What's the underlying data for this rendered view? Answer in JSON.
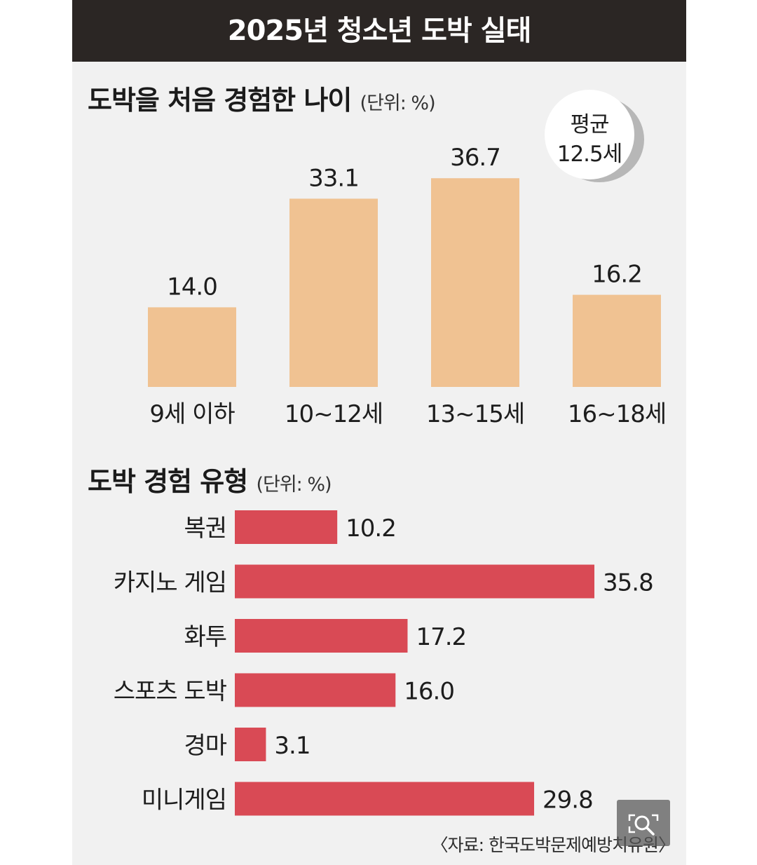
{
  "title": "2025년 청소년 도박 실태",
  "source": "〈자료: 한국도박문제예방치유원〉",
  "colors": {
    "title_bg": "#2b2624",
    "panel_bg": "#f1f1f1",
    "age_bar": "#f0c292",
    "type_bar": "#d94a55"
  },
  "icons": {
    "zoom": "search-icon"
  },
  "chart_data": [
    {
      "type": "bar",
      "title": "도박을 처음 경험한 나이",
      "unit": "(단위: %)",
      "annotation": {
        "line1": "평균",
        "line2": "12.5세"
      },
      "categories": [
        "9세 이하",
        "10~12세",
        "13~15세",
        "16~18세"
      ],
      "values": [
        14.0,
        33.1,
        36.7,
        16.2
      ],
      "value_labels": [
        "14.0",
        "33.1",
        "36.7",
        "16.2"
      ],
      "ylim": [
        0,
        40
      ],
      "orientation": "vertical",
      "grid": false
    },
    {
      "type": "bar",
      "title": "도박 경험 유형",
      "unit": "(단위: %)",
      "categories": [
        "복권",
        "카지노 게임",
        "화투",
        "스포츠 도박",
        "경마",
        "미니게임"
      ],
      "values": [
        10.2,
        35.8,
        17.2,
        16.0,
        3.1,
        29.8
      ],
      "value_labels": [
        "10.2",
        "35.8",
        "17.2",
        "16.0",
        "3.1",
        "29.8"
      ],
      "xlim": [
        0,
        40
      ],
      "orientation": "horizontal",
      "grid": false
    }
  ]
}
